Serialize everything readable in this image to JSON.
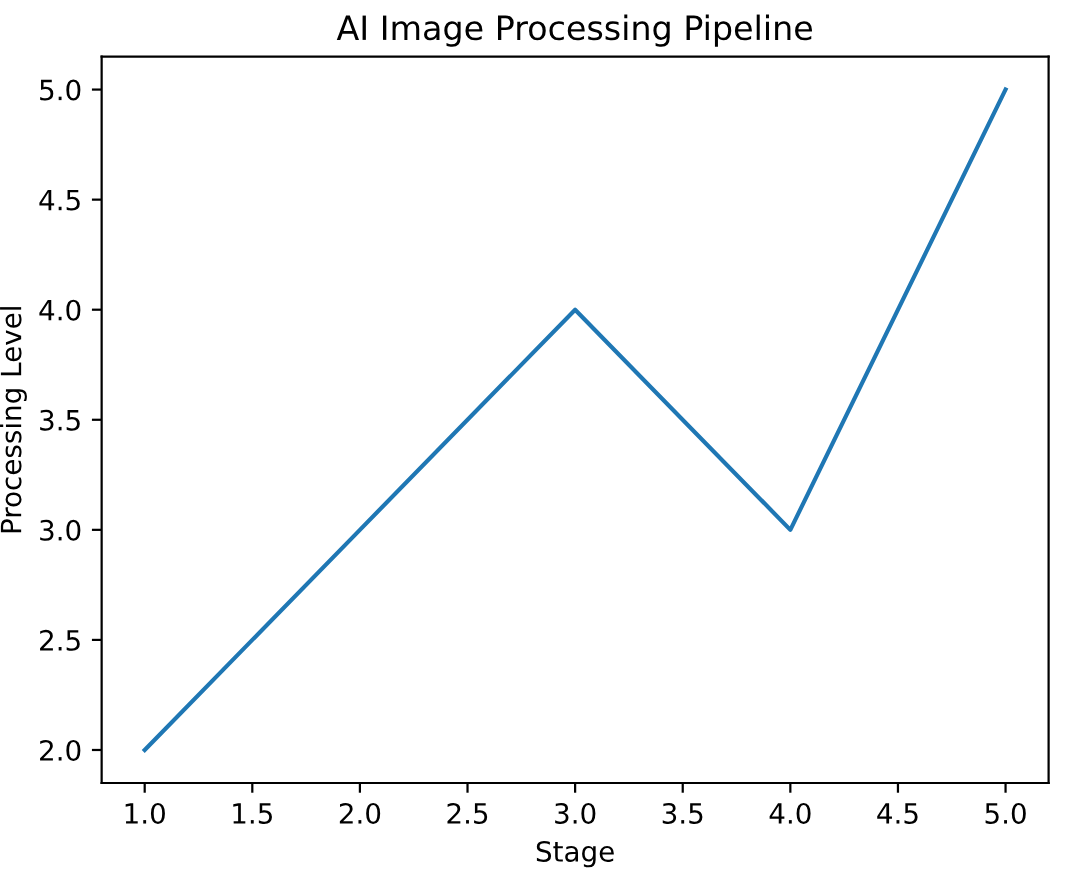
{
  "chart_data": {
    "type": "line",
    "title": "AI Image Processing Pipeline",
    "xlabel": "Stage",
    "ylabel": "Processing Level",
    "x": [
      1,
      2,
      3,
      4,
      5
    ],
    "series": [
      {
        "color": "#1f77b4",
        "values": [
          2,
          3,
          4,
          3,
          5
        ]
      }
    ],
    "xlim": [
      0.8,
      5.2
    ],
    "ylim": [
      1.85,
      5.15
    ],
    "xticks": [
      {
        "value": 1,
        "label": "1.0"
      },
      {
        "value": 1.5,
        "label": "1.5"
      },
      {
        "value": 2,
        "label": "2.0"
      },
      {
        "value": 2.5,
        "label": "2.5"
      },
      {
        "value": 3,
        "label": "3.0"
      },
      {
        "value": 3.5,
        "label": "3.5"
      },
      {
        "value": 4,
        "label": "4.0"
      },
      {
        "value": 4.5,
        "label": "4.5"
      },
      {
        "value": 5,
        "label": "5.0"
      }
    ],
    "yticks": [
      {
        "value": 2,
        "label": "2.0"
      },
      {
        "value": 2.5,
        "label": "2.5"
      },
      {
        "value": 3,
        "label": "3.0"
      },
      {
        "value": 3.5,
        "label": "3.5"
      },
      {
        "value": 4,
        "label": "4.0"
      },
      {
        "value": 4.5,
        "label": "4.5"
      },
      {
        "value": 5,
        "label": "5.0"
      }
    ],
    "grid": false
  }
}
